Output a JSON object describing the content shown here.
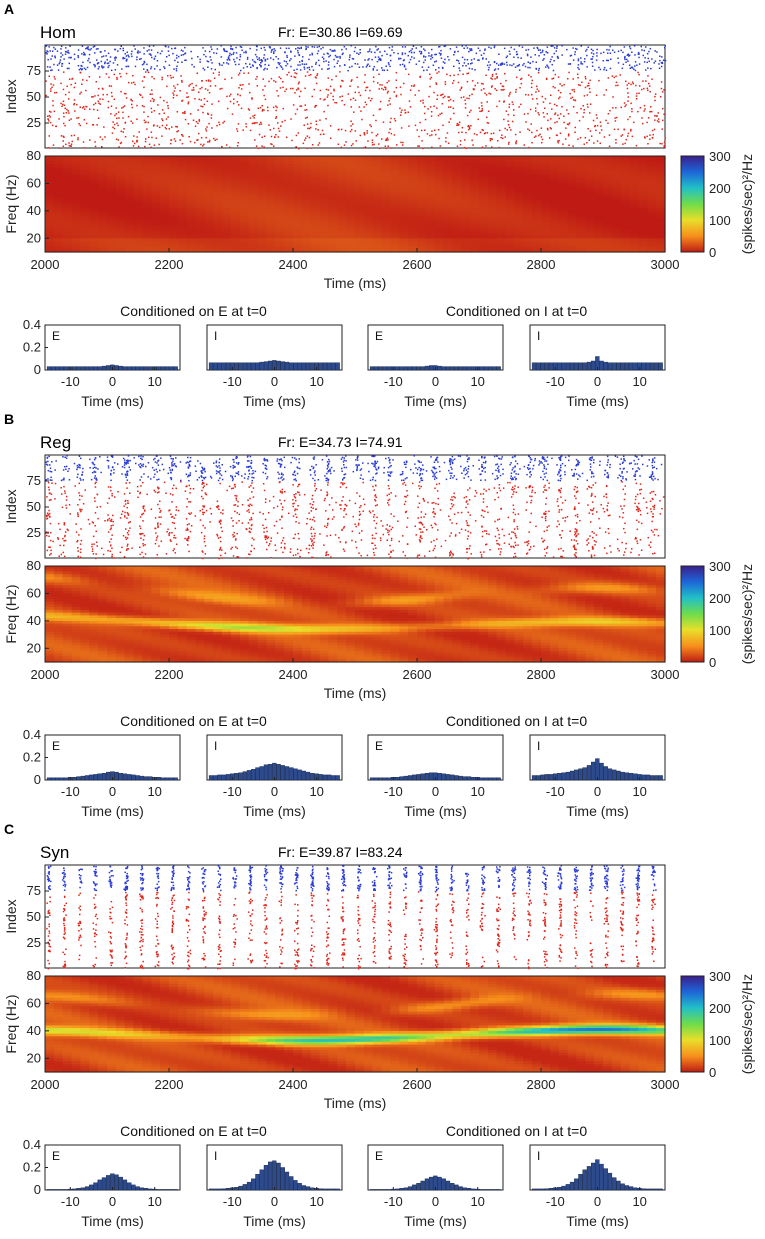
{
  "figure": {
    "colorbar": {
      "ticks": [
        "300",
        "200",
        "100",
        "0"
      ],
      "label": "(spikes/sec)²/Hz",
      "colors": [
        "#3b1f8c",
        "#1d66d8",
        "#22c0c8",
        "#6fdc4a",
        "#e9de2a",
        "#f7901c",
        "#bf1b14"
      ]
    },
    "raster_colors": {
      "E": "#e0261b",
      "I": "#2a3bd4"
    },
    "bar_color": "#2c4a8c",
    "axes": {
      "raster_ylabel": "Index",
      "raster_yticks": [
        "75",
        "50",
        "25"
      ],
      "spec_ylabel": "Freq (Hz)",
      "spec_yticks": [
        "80",
        "60",
        "40",
        "20"
      ],
      "time_ticks": [
        "2000",
        "2200",
        "2400",
        "2600",
        "2800",
        "3000"
      ],
      "time_label": "Time (ms)",
      "hist_yticks": [
        "0.4",
        "0.2",
        "0"
      ],
      "hist_xticks": [
        "-10",
        "0",
        "10"
      ],
      "hist_xlabel": "Time (ms)"
    },
    "hist_titles": {
      "E": "Conditioned on E at t=0",
      "I": "Conditioned on I at t=0"
    },
    "hist_letters": [
      "E",
      "I",
      "E",
      "I"
    ]
  },
  "chart_data": [
    {
      "type": "heatmap",
      "panel": "A",
      "title": "Hom",
      "firing_rate": "Fr: E=30.86 I=69.69",
      "raster": {
        "x_range": [
          2000,
          3000
        ],
        "y_range": [
          1,
          100
        ],
        "E_index_range": [
          1,
          75
        ],
        "I_index_range": [
          76,
          100
        ],
        "rhythm": "asynchronous"
      },
      "spectrogram": {
        "x_range": [
          2000,
          3000
        ],
        "y_range": [
          10,
          80
        ],
        "color_range": [
          0,
          300
        ],
        "peak_hz": null,
        "peak_power": 15
      },
      "histograms": {
        "x": [
          -15,
          -14,
          -13,
          -12,
          -11,
          -10,
          -9,
          -8,
          -7,
          -6,
          -5,
          -4,
          -3,
          -2,
          -1,
          0,
          1,
          2,
          3,
          4,
          5,
          6,
          7,
          8,
          9,
          10,
          11,
          12,
          13,
          14,
          15
        ],
        "ylim": [
          0,
          0.4
        ],
        "series": [
          {
            "name": "E|E",
            "values": [
              0.03,
              0.03,
              0.03,
              0.03,
              0.03,
              0.03,
              0.03,
              0.03,
              0.03,
              0.03,
              0.03,
              0.03,
              0.03,
              0.035,
              0.04,
              0.045,
              0.04,
              0.035,
              0.03,
              0.03,
              0.03,
              0.03,
              0.03,
              0.03,
              0.03,
              0.03,
              0.03,
              0.03,
              0.03,
              0.03,
              0.03
            ]
          },
          {
            "name": "I|E",
            "values": [
              0.065,
              0.065,
              0.065,
              0.065,
              0.065,
              0.065,
              0.065,
              0.065,
              0.065,
              0.065,
              0.065,
              0.065,
              0.07,
              0.075,
              0.08,
              0.085,
              0.08,
              0.075,
              0.07,
              0.065,
              0.065,
              0.065,
              0.065,
              0.065,
              0.065,
              0.065,
              0.065,
              0.065,
              0.065,
              0.065,
              0.065
            ]
          },
          {
            "name": "E|I",
            "values": [
              0.03,
              0.03,
              0.03,
              0.03,
              0.03,
              0.03,
              0.03,
              0.03,
              0.03,
              0.03,
              0.03,
              0.03,
              0.03,
              0.035,
              0.04,
              0.04,
              0.035,
              0.03,
              0.03,
              0.03,
              0.03,
              0.03,
              0.03,
              0.03,
              0.03,
              0.03,
              0.03,
              0.03,
              0.03,
              0.03,
              0.03
            ]
          },
          {
            "name": "I|I",
            "values": [
              0.065,
              0.065,
              0.065,
              0.065,
              0.065,
              0.065,
              0.065,
              0.065,
              0.065,
              0.065,
              0.065,
              0.065,
              0.065,
              0.07,
              0.08,
              0.12,
              0.08,
              0.07,
              0.065,
              0.065,
              0.065,
              0.065,
              0.065,
              0.065,
              0.065,
              0.065,
              0.065,
              0.065,
              0.065,
              0.065,
              0.065
            ]
          }
        ]
      }
    },
    {
      "type": "heatmap",
      "panel": "B",
      "title": "Reg",
      "firing_rate": "Fr: E=34.73 I=74.91",
      "raster": {
        "x_range": [
          2000,
          3000
        ],
        "y_range": [
          1,
          100
        ],
        "E_index_range": [
          1,
          75
        ],
        "I_index_range": [
          76,
          100
        ],
        "rhythm": "regular"
      },
      "spectrogram": {
        "x_range": [
          2000,
          3000
        ],
        "y_range": [
          10,
          80
        ],
        "color_range": [
          0,
          300
        ],
        "peak_hz": 40,
        "peak_power": 120
      },
      "histograms": {
        "x": [
          -15,
          -14,
          -13,
          -12,
          -11,
          -10,
          -9,
          -8,
          -7,
          -6,
          -5,
          -4,
          -3,
          -2,
          -1,
          0,
          1,
          2,
          3,
          4,
          5,
          6,
          7,
          8,
          9,
          10,
          11,
          12,
          13,
          14,
          15
        ],
        "ylim": [
          0,
          0.4
        ],
        "series": [
          {
            "name": "E|E",
            "values": [
              0.02,
              0.02,
              0.02,
              0.02,
              0.02,
              0.025,
              0.025,
              0.03,
              0.035,
              0.04,
              0.045,
              0.05,
              0.055,
              0.06,
              0.07,
              0.075,
              0.07,
              0.06,
              0.055,
              0.05,
              0.045,
              0.04,
              0.035,
              0.03,
              0.03,
              0.025,
              0.025,
              0.02,
              0.02,
              0.02,
              0.02
            ]
          },
          {
            "name": "I|E",
            "values": [
              0.04,
              0.04,
              0.045,
              0.045,
              0.05,
              0.055,
              0.06,
              0.065,
              0.075,
              0.085,
              0.095,
              0.11,
              0.12,
              0.135,
              0.14,
              0.15,
              0.14,
              0.13,
              0.12,
              0.11,
              0.1,
              0.09,
              0.08,
              0.07,
              0.06,
              0.055,
              0.05,
              0.045,
              0.045,
              0.04,
              0.04
            ]
          },
          {
            "name": "E|I",
            "values": [
              0.02,
              0.02,
              0.02,
              0.02,
              0.02,
              0.025,
              0.025,
              0.03,
              0.035,
              0.04,
              0.045,
              0.05,
              0.055,
              0.06,
              0.065,
              0.065,
              0.06,
              0.055,
              0.05,
              0.045,
              0.04,
              0.035,
              0.03,
              0.03,
              0.025,
              0.025,
              0.02,
              0.02,
              0.02,
              0.02,
              0.02
            ]
          },
          {
            "name": "I|I",
            "values": [
              0.04,
              0.04,
              0.045,
              0.05,
              0.05,
              0.055,
              0.06,
              0.065,
              0.07,
              0.08,
              0.09,
              0.1,
              0.11,
              0.13,
              0.16,
              0.19,
              0.15,
              0.12,
              0.1,
              0.09,
              0.08,
              0.07,
              0.065,
              0.06,
              0.055,
              0.05,
              0.045,
              0.045,
              0.04,
              0.04,
              0.04
            ]
          }
        ]
      }
    },
    {
      "type": "heatmap",
      "panel": "C",
      "title": "Syn",
      "firing_rate": "Fr: E=39.87 I=83.24",
      "raster": {
        "x_range": [
          2000,
          3000
        ],
        "y_range": [
          1,
          100
        ],
        "E_index_range": [
          1,
          75
        ],
        "I_index_range": [
          76,
          100
        ],
        "rhythm": "synchronous"
      },
      "spectrogram": {
        "x_range": [
          2000,
          3000
        ],
        "y_range": [
          10,
          80
        ],
        "color_range": [
          0,
          300
        ],
        "peak_hz": 37,
        "peak_power": 220
      },
      "histograms": {
        "x": [
          -15,
          -14,
          -13,
          -12,
          -11,
          -10,
          -9,
          -8,
          -7,
          -6,
          -5,
          -4,
          -3,
          -2,
          -1,
          0,
          1,
          2,
          3,
          4,
          5,
          6,
          7,
          8,
          9,
          10,
          11,
          12,
          13,
          14,
          15
        ],
        "ylim": [
          0,
          0.4
        ],
        "series": [
          {
            "name": "E|E",
            "values": [
              0.005,
              0.005,
              0.005,
              0.005,
              0.005,
              0.008,
              0.01,
              0.015,
              0.02,
              0.03,
              0.045,
              0.065,
              0.09,
              0.11,
              0.13,
              0.145,
              0.135,
              0.115,
              0.09,
              0.065,
              0.045,
              0.03,
              0.02,
              0.015,
              0.01,
              0.008,
              0.005,
              0.005,
              0.005,
              0.005,
              0.005
            ]
          },
          {
            "name": "I|E",
            "values": [
              0.01,
              0.01,
              0.01,
              0.012,
              0.015,
              0.02,
              0.025,
              0.035,
              0.05,
              0.07,
              0.1,
              0.14,
              0.18,
              0.22,
              0.25,
              0.26,
              0.24,
              0.2,
              0.16,
              0.12,
              0.085,
              0.06,
              0.04,
              0.03,
              0.02,
              0.015,
              0.012,
              0.01,
              0.01,
              0.01,
              0.01
            ]
          },
          {
            "name": "E|I",
            "values": [
              0.005,
              0.005,
              0.005,
              0.005,
              0.005,
              0.008,
              0.01,
              0.015,
              0.02,
              0.03,
              0.045,
              0.06,
              0.08,
              0.1,
              0.115,
              0.125,
              0.115,
              0.1,
              0.08,
              0.06,
              0.045,
              0.03,
              0.02,
              0.015,
              0.01,
              0.008,
              0.005,
              0.005,
              0.005,
              0.005,
              0.005
            ]
          },
          {
            "name": "I|I",
            "values": [
              0.01,
              0.01,
              0.01,
              0.012,
              0.015,
              0.02,
              0.025,
              0.035,
              0.05,
              0.07,
              0.1,
              0.14,
              0.18,
              0.21,
              0.24,
              0.27,
              0.23,
              0.19,
              0.15,
              0.11,
              0.08,
              0.055,
              0.04,
              0.03,
              0.02,
              0.015,
              0.012,
              0.01,
              0.01,
              0.01,
              0.01
            ]
          }
        ]
      }
    }
  ]
}
